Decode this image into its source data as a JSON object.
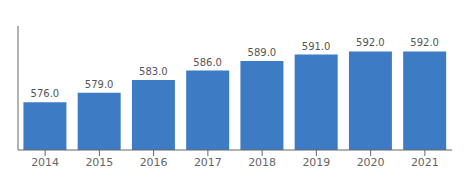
{
  "chart_data": {
    "type": "bar",
    "categories": [
      "2014",
      "2015",
      "2016",
      "2017",
      "2018",
      "2019",
      "2020",
      "2021"
    ],
    "values": [
      576.0,
      579.0,
      583.0,
      586.0,
      589.0,
      591.0,
      592.0,
      592.0
    ],
    "value_labels": [
      "576.0",
      "579.0",
      "583.0",
      "586.0",
      "589.0",
      "591.0",
      "592.0",
      "592.0"
    ],
    "color": "#3d7bc4",
    "ylim": [
      561,
      600
    ],
    "data_labels": true,
    "tick_labels": "x",
    "grid": false
  }
}
